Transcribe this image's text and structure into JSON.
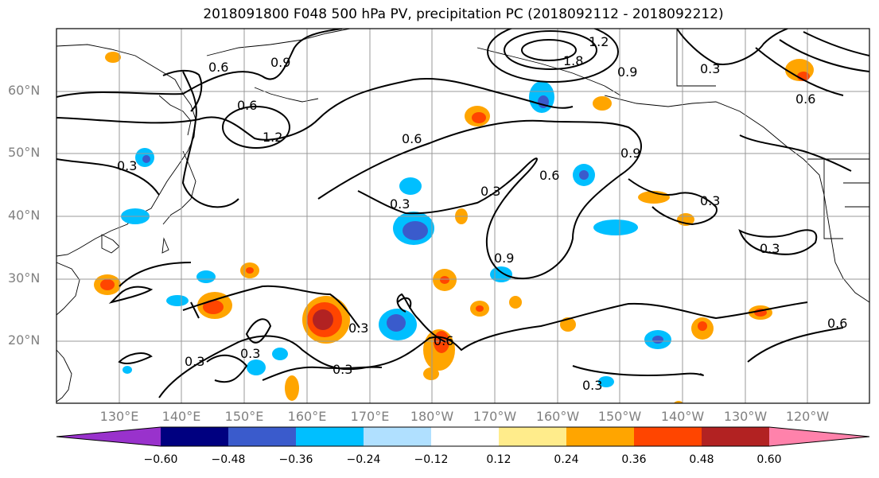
{
  "title": "2018091800 F048 500 hPa PV, precipitation PC (2018092112 - 2018092212)",
  "lat_labels": [
    "60°N",
    "50°N",
    "40°N",
    "30°N",
    "20°N"
  ],
  "lon_labels": [
    "130°E",
    "140°E",
    "150°E",
    "160°E",
    "170°E",
    "180°W",
    "170°W",
    "160°W",
    "150°W",
    "140°W",
    "130°W",
    "120°W"
  ],
  "colorbar": {
    "ticks": [
      "−0.60",
      "−0.48",
      "−0.36",
      "−0.24",
      "−0.12",
      "0.12",
      "0.24",
      "0.36",
      "0.48",
      "0.60"
    ],
    "colors": [
      "#9932cc",
      "#000080",
      "#3a5bcc",
      "#00bfff",
      "#b0e0ff",
      "#ffffff",
      "#ffec8b",
      "#ffa500",
      "#ff4500",
      "#b22222",
      "#ff82ab"
    ]
  },
  "contour_labels": [
    "0.6",
    "0.9",
    "1.2",
    "0.3",
    "0.6",
    "0.3",
    "0.6",
    "0.3",
    "0.9",
    "0.3",
    "0.9",
    "0.3",
    "0.3",
    "0.3",
    "0.3",
    "0.3",
    "0.6",
    "1.2",
    "1.8",
    "0.9",
    "0.3",
    "0.6",
    "0.6",
    "0.3",
    "0.6"
  ]
}
